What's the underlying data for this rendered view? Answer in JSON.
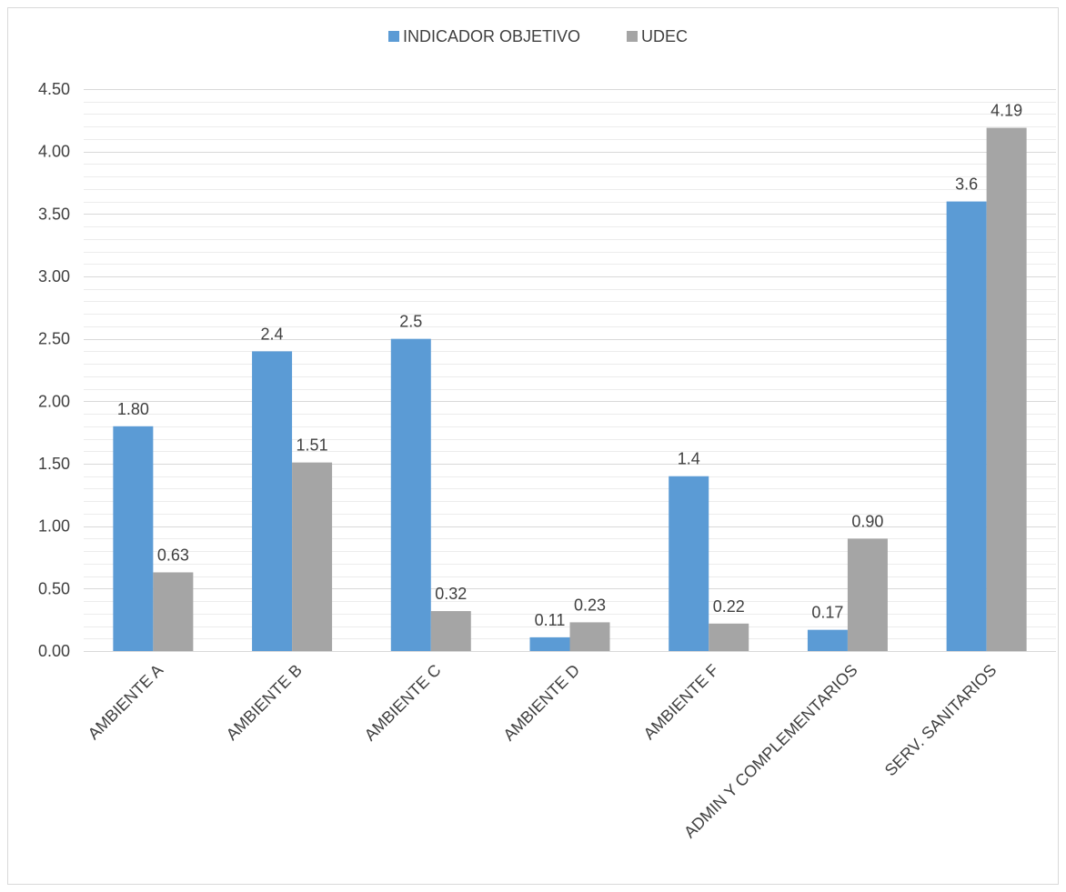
{
  "chart_data": {
    "type": "bar",
    "title": "",
    "xlabel": "",
    "ylabel": "",
    "categories": [
      "AMBIENTE A",
      "AMBIENTE B",
      "AMBIENTE C",
      "AMBIENTE D",
      "AMBIENTE F",
      "ADMIN Y COMPLEMENTARIOS",
      "SERV. SANITARIOS"
    ],
    "series": [
      {
        "name": "INDICADOR OBJETIVO",
        "color": "#5b9bd5",
        "values": [
          1.8,
          2.4,
          2.5,
          0.11,
          1.4,
          0.17,
          3.6
        ],
        "labels": [
          "1.80",
          "2.4",
          "2.5",
          "0.11",
          "1.4",
          "0.17",
          "3.6"
        ]
      },
      {
        "name": "UDEC",
        "color": "#a5a5a5",
        "values": [
          0.63,
          1.51,
          0.32,
          0.23,
          0.22,
          0.9,
          4.19
        ],
        "labels": [
          "0.63",
          "1.51",
          "0.32",
          "0.23",
          "0.22",
          "0.90",
          "4.19"
        ]
      }
    ],
    "ylim": [
      0,
      4.5
    ],
    "y_ticks": [
      "0.00",
      "0.50",
      "1.00",
      "1.50",
      "2.00",
      "2.50",
      "3.00",
      "3.50",
      "4.00",
      "4.50"
    ],
    "grid": true,
    "legend_position": "top"
  }
}
